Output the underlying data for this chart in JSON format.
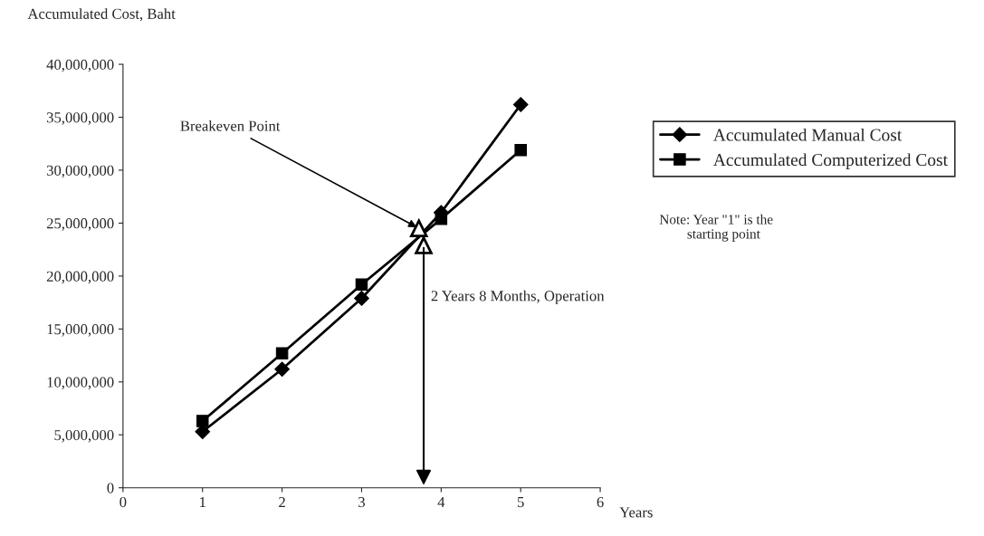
{
  "chart_data": {
    "type": "line",
    "ylabel": "Accumulated Cost, Baht",
    "xlabel": "Years",
    "x": [
      1,
      2,
      3,
      4,
      5
    ],
    "series": [
      {
        "name": "Accumulated Manual Cost",
        "color": "#000000",
        "marker": "diamond",
        "values": [
          5300000,
          11200000,
          17900000,
          26000000,
          36200000
        ]
      },
      {
        "name": "Accumulated Computerized Cost",
        "color": "#000000",
        "marker": "square",
        "values": [
          6300000,
          12700000,
          19200000,
          25400000,
          31900000
        ]
      }
    ],
    "xlim": [
      0,
      6
    ],
    "xticks": [
      0,
      1,
      2,
      3,
      4,
      5,
      6
    ],
    "ylim": [
      0,
      40000000
    ],
    "yticks": [
      {
        "value": 0,
        "label": "0"
      },
      {
        "value": 5000000,
        "label": "5,000,000"
      },
      {
        "value": 10000000,
        "label": "10,000,000"
      },
      {
        "value": 15000000,
        "label": "15,000,000"
      },
      {
        "value": 20000000,
        "label": "20,000,000"
      },
      {
        "value": 25000000,
        "label": "25,000,000"
      },
      {
        "value": 30000000,
        "label": "30,000,000"
      },
      {
        "value": 35000000,
        "label": "35,000,000"
      },
      {
        "value": 40000000,
        "label": "40,000,000"
      }
    ],
    "annotations": [
      {
        "text": "Breakeven Point",
        "x": 3.72,
        "y": 24500000
      },
      "2 Years 8 Months, Operation",
      "Note: Year \"1\" is the\n        starting point"
    ],
    "legend": "right",
    "grid": false
  }
}
